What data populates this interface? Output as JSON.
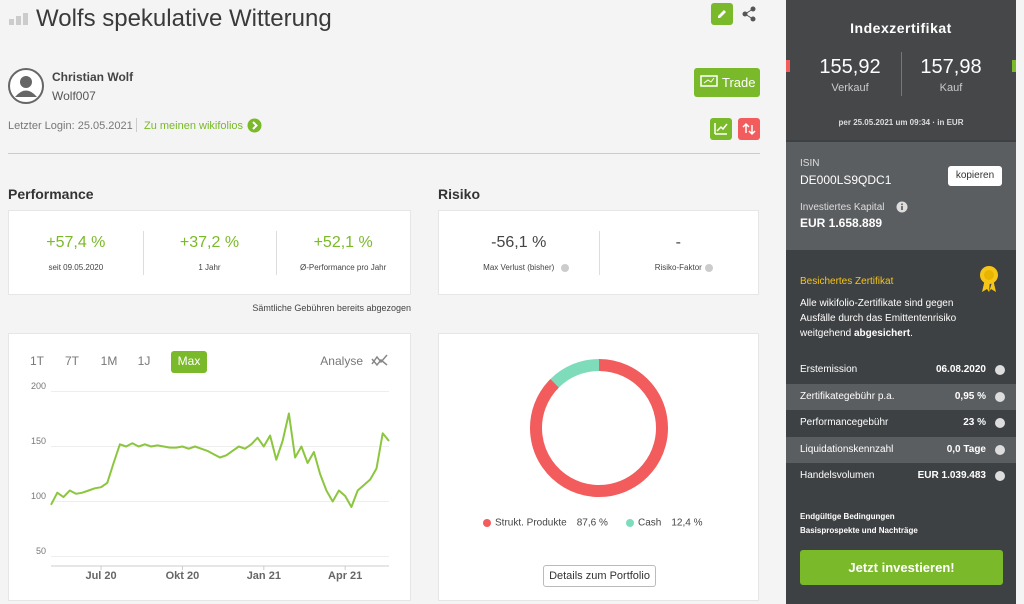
{
  "header": {
    "title": "Wolfs spekulative Witterung"
  },
  "user": {
    "name": "Christian Wolf",
    "handle": "Wolf007",
    "last_login": "Letzter Login: 25.05.2021",
    "link": "Zu meinen wikifolios",
    "trade_button": "Trade"
  },
  "performance": {
    "title": "Performance",
    "items": [
      {
        "value": "+57,4 %",
        "label": "seit 09.05.2020"
      },
      {
        "value": "+37,2 %",
        "label": "1 Jahr"
      },
      {
        "value": "+52,1 %",
        "label": "Ø-Performance pro Jahr"
      }
    ],
    "note": "Sämtliche Gebühren bereits abgezogen"
  },
  "risk": {
    "title": "Risiko",
    "items": [
      {
        "value": "-56,1 %",
        "label": "Max Verlust (bisher)"
      },
      {
        "value": "-",
        "label": "Risiko-Faktor"
      }
    ]
  },
  "price_chart": {
    "type": "line",
    "tabs": [
      "1T",
      "7T",
      "1M",
      "1J",
      "Max"
    ],
    "active_tab": "Max",
    "analysis": "Analyse",
    "categories": [
      null,
      null,
      null,
      null,
      null,
      null,
      null,
      null,
      "Jul 20",
      null,
      null,
      null,
      null,
      null,
      null,
      null,
      null,
      null,
      null,
      null,
      null,
      "Okt 20",
      null,
      null,
      null,
      null,
      null,
      null,
      null,
      null,
      null,
      null,
      null,
      null,
      "Jan 21",
      null,
      null,
      null,
      null,
      null,
      null,
      null,
      null,
      null,
      null,
      null,
      null,
      "Apr 21",
      null,
      null,
      null,
      null,
      null,
      null,
      null
    ],
    "series": [
      {
        "color": "#8cc63f",
        "values": [
          97,
          108,
          104,
          110,
          107,
          108,
          110,
          112,
          113,
          117,
          135,
          152,
          150,
          153,
          150,
          152,
          150,
          151,
          150,
          149,
          149,
          150,
          148,
          150,
          148,
          146,
          143,
          140,
          142,
          146,
          150,
          148,
          152,
          158,
          150,
          160,
          138,
          155,
          180,
          140,
          150,
          135,
          145,
          125,
          110,
          100,
          110,
          105,
          95,
          110,
          115,
          120,
          130,
          162,
          155
        ]
      }
    ],
    "ylim": [
      45,
      205
    ],
    "yticks": [
      50,
      100,
      150,
      200
    ],
    "grid": true
  },
  "portfolio_chart": {
    "type": "pie",
    "categories": [
      "Strukt. Produkte",
      "Cash"
    ],
    "values": [
      87.6,
      12.4
    ],
    "value_labels": [
      "87,6 %",
      "12,4 %"
    ],
    "colors": [
      "#f25c5c",
      "#7fdcbb"
    ],
    "button": "Details zum Portfolio"
  },
  "sidebar": {
    "title": "Indexzertifikat",
    "sell": "155,92",
    "sell_label": "Verkauf",
    "buy": "157,98",
    "buy_label": "Kauf",
    "quote_time": "per 25.05.2021 um 09:34 · in EUR",
    "isin_label": "ISIN",
    "isin": "DE000LS9QDC1",
    "copy": "kopieren",
    "capital_label": "Investiertes Kapital",
    "capital": "EUR 1.658.889",
    "secured_title": "Besichertes Zertifikat",
    "secured_text": "Alle wikifolio-Zertifikate sind gegen Ausfälle durch das Emittentenrisiko weitgehend ",
    "secured_bold": "abgesichert",
    "secured_end": ".",
    "rows": [
      [
        "Erstemission",
        "06.08.2020"
      ],
      [
        "Zertifikategebühr p.a.",
        "0,95 %"
      ],
      [
        "Performancegebühr",
        "23 %"
      ],
      [
        "Liquidationskennzahl",
        "0,0 Tage"
      ],
      [
        "Handelsvolumen",
        "EUR 1.039.483"
      ]
    ],
    "links": [
      "Endgültige Bedingungen",
      "Basisprospekte und Nachträge"
    ],
    "cta": "Jetzt investieren!"
  }
}
